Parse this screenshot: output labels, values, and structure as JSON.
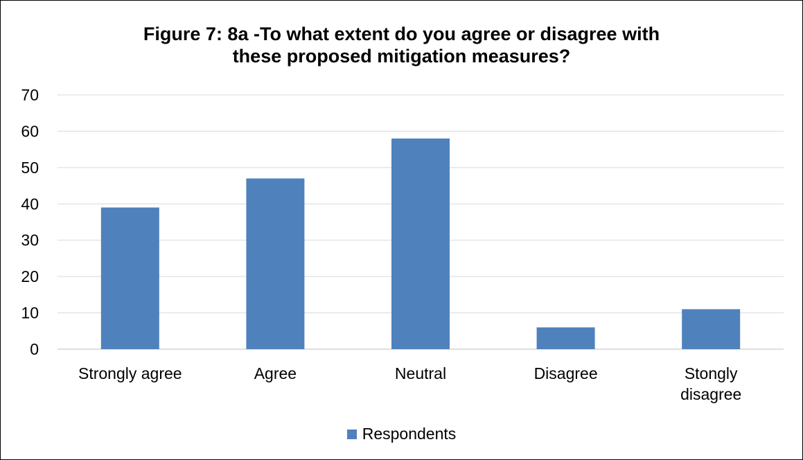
{
  "chart_data": {
    "type": "bar",
    "title_lines": [
      "Figure 7: 8a -To what extent do you agree or disagree with",
      "these proposed mitigation measures?"
    ],
    "categories": [
      [
        "Strongly agree"
      ],
      [
        "Agree"
      ],
      [
        "Neutral"
      ],
      [
        "Disagree"
      ],
      [
        "Stongly",
        "disagree"
      ]
    ],
    "series": [
      {
        "name": "Respondents",
        "color": "#4f81bd",
        "values": [
          39,
          47,
          58,
          6,
          11
        ]
      }
    ],
    "ylim": [
      0,
      70
    ],
    "yticks": [
      0,
      10,
      20,
      30,
      40,
      50,
      60,
      70
    ],
    "grid": true,
    "legend_position": "bottom"
  }
}
